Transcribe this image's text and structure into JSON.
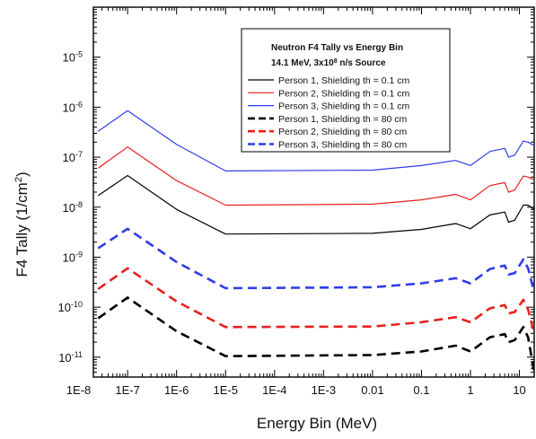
{
  "chart_data": {
    "type": "line",
    "title_lines": [
      "Neutron F4 Tally vs Energy Bin",
      "14.1 MeV, 3x10",
      "8",
      " n/s Source"
    ],
    "xlabel": "Energy Bin (MeV)",
    "ylabel_parts": [
      "F4 Tally (1/cm",
      "2",
      ")"
    ],
    "xscale": "log",
    "yscale": "log",
    "xlim": [
      2e-08,
      20
    ],
    "ylim": [
      4e-12,
      0.0001
    ],
    "x_ticks": [
      {
        "value": 1e-08,
        "label": "1E-8"
      },
      {
        "value": 1e-07,
        "label": "1E-7"
      },
      {
        "value": 1e-06,
        "label": "1E-6"
      },
      {
        "value": 1e-05,
        "label": "1E-5"
      },
      {
        "value": 0.0001,
        "label": "1E-4"
      },
      {
        "value": 0.001,
        "label": "1E-3"
      },
      {
        "value": 0.01,
        "label": "0.01"
      },
      {
        "value": 0.1,
        "label": "0.1"
      },
      {
        "value": 1,
        "label": "1"
      },
      {
        "value": 10,
        "label": "10"
      }
    ],
    "y_ticks": [
      {
        "value": 1e-11,
        "base": "10",
        "exp": "-11"
      },
      {
        "value": 1e-10,
        "base": "10",
        "exp": "-10"
      },
      {
        "value": 1e-09,
        "base": "10",
        "exp": "-9"
      },
      {
        "value": 1e-08,
        "base": "10",
        "exp": "-8"
      },
      {
        "value": 1e-07,
        "base": "10",
        "exp": "-7"
      },
      {
        "value": 1e-06,
        "base": "10",
        "exp": "-6"
      },
      {
        "value": 1e-05,
        "base": "10",
        "exp": "-5"
      }
    ],
    "x": [
      2.5e-08,
      1e-07,
      1e-06,
      1e-05,
      0.01,
      0.1,
      0.5,
      1,
      2.5,
      5,
      6,
      8,
      12,
      15,
      20
    ],
    "series": [
      {
        "name": "Person 1, Shielding th = 0.1 cm",
        "color": "#000000",
        "dash": "solid",
        "values": [
          1.7e-08,
          4.3e-08,
          9e-09,
          2.9e-09,
          3e-09,
          3.6e-09,
          4.7e-09,
          3.7e-09,
          7e-09,
          8e-09,
          5e-09,
          5.5e-09,
          1.1e-08,
          1.1e-08,
          9e-09
        ]
      },
      {
        "name": "Person 2, Shielding th = 0.1 cm",
        "color": "#e8211e",
        "dash": "solid",
        "values": [
          6e-08,
          1.6e-07,
          3.4e-08,
          1.1e-08,
          1.15e-08,
          1.4e-08,
          1.8e-08,
          1.4e-08,
          2.7e-08,
          3.1e-08,
          2e-08,
          2.2e-08,
          4.2e-08,
          4e-08,
          3.5e-08
        ]
      },
      {
        "name": "Person 3, Shielding th = 0.1 cm",
        "color": "#2f3de8",
        "dash": "solid",
        "values": [
          3.3e-07,
          8.5e-07,
          1.8e-07,
          5.3e-08,
          5.5e-08,
          6.8e-08,
          8.6e-08,
          6.8e-08,
          1.3e-07,
          1.5e-07,
          1e-07,
          1.1e-07,
          2.1e-07,
          2e-07,
          1.7e-07
        ]
      },
      {
        "name": "Person 1, Shielding th = 80 cm",
        "color": "#000000",
        "dash": "dashed",
        "values": [
          6e-11,
          1.55e-10,
          3.3e-11,
          1.05e-11,
          1.1e-11,
          1.3e-11,
          1.7e-11,
          1.3e-11,
          2.5e-11,
          2.9e-11,
          2e-11,
          2.2e-11,
          4e-11,
          2.5e-11,
          5e-12
        ]
      },
      {
        "name": "Person 2, Shielding th = 80 cm",
        "color": "#e8211e",
        "dash": "dashed",
        "values": [
          2.3e-10,
          6e-10,
          1.3e-10,
          4e-11,
          4.1e-11,
          5e-11,
          6.3e-11,
          5e-11,
          9.5e-11,
          1.1e-10,
          7.5e-11,
          8e-11,
          1.4e-10,
          9e-11,
          3e-11
        ]
      },
      {
        "name": "Person 3, Shielding th = 80 cm",
        "color": "#2f3de8",
        "dash": "dashed",
        "values": [
          1.5e-09,
          3.7e-09,
          8e-10,
          2.4e-10,
          2.5e-10,
          3e-10,
          3.8e-10,
          3e-10,
          5.8e-10,
          6.8e-10,
          4.5e-10,
          4.8e-10,
          9e-10,
          6e-10,
          2e-10
        ]
      }
    ],
    "legend_position": "top-right",
    "grid": false
  }
}
